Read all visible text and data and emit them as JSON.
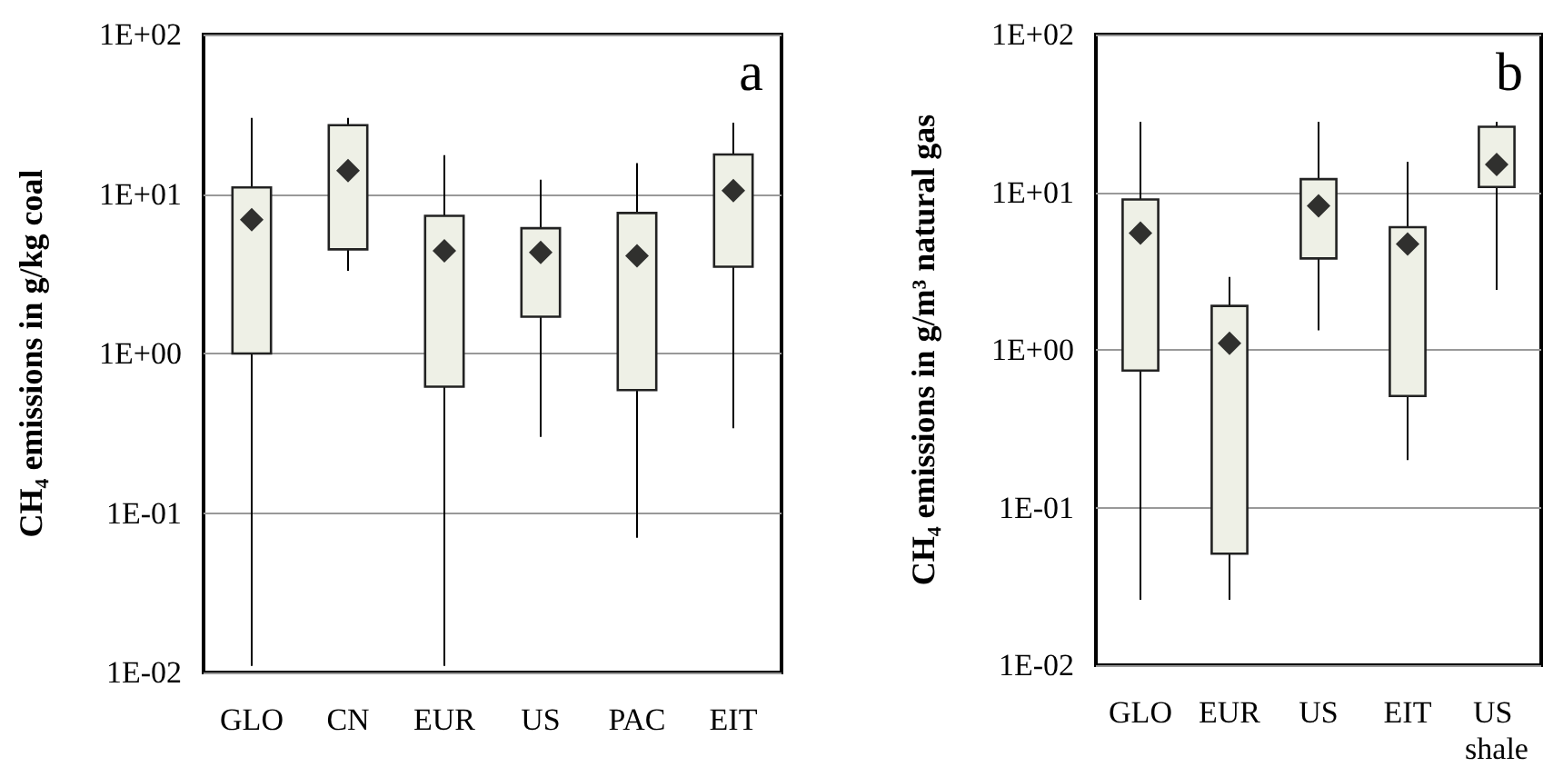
{
  "chart_data": [
    {
      "type": "box",
      "ylabel": "CH₄ emissions in g/kg coal",
      "annotations": [
        "a"
      ],
      "categories": [
        "GLO",
        "CN",
        "EUR",
        "US",
        "PAC",
        "EIT"
      ],
      "color": "#eef0e6",
      "boxes": [
        {
          "low": 0.011,
          "q1": 1.0,
          "q3": 11,
          "high": 30,
          "mean": 6.9
        },
        {
          "low": 3.3,
          "q1": 4.5,
          "q3": 27,
          "high": 30,
          "mean": 14
        },
        {
          "low": 0.011,
          "q1": 0.62,
          "q3": 7.3,
          "high": 17.5,
          "mean": 4.4
        },
        {
          "low": 0.3,
          "q1": 1.7,
          "q3": 6.1,
          "high": 12.3,
          "mean": 4.3
        },
        {
          "low": 0.07,
          "q1": 0.59,
          "q3": 7.6,
          "high": 15.6,
          "mean": 4.1
        },
        {
          "low": 0.34,
          "q1": 3.5,
          "q3": 17.7,
          "high": 28,
          "mean": 10.5
        }
      ],
      "log": "y",
      "ylim": [
        0.01,
        100
      ],
      "yticks": [
        {
          "value": 0.01,
          "label": "1E-02"
        },
        {
          "value": 0.1,
          "label": "1E-01"
        },
        {
          "value": 1,
          "label": "1E+00"
        },
        {
          "value": 10,
          "label": "1E+01"
        },
        {
          "value": 100,
          "label": "1E+02"
        }
      ],
      "grid": "y",
      "marker": "diamond"
    },
    {
      "type": "box",
      "ylabel": "CH₄ emissions in g/m³ natural gas",
      "annotations": [
        "b"
      ],
      "categories": [
        "GLO",
        "EUR",
        "US",
        "EIT",
        "US shale"
      ],
      "color": "#eef0e6",
      "boxes": [
        {
          "low": 0.026,
          "q1": 0.74,
          "q3": 9,
          "high": 28,
          "mean": 5.5
        },
        {
          "low": 0.026,
          "q1": 0.051,
          "q3": 1.9,
          "high": 2.9,
          "mean": 1.1
        },
        {
          "low": 1.33,
          "q1": 3.8,
          "q3": 12.1,
          "high": 28,
          "mean": 8.2
        },
        {
          "low": 0.2,
          "q1": 0.51,
          "q3": 6,
          "high": 15.6,
          "mean": 4.7
        },
        {
          "low": 2.4,
          "q1": 10.8,
          "q3": 26,
          "high": 28,
          "mean": 15
        }
      ],
      "log": "y",
      "ylim": [
        0.01,
        100
      ],
      "yticks": [
        {
          "value": 0.01,
          "label": "1E-02"
        },
        {
          "value": 0.1,
          "label": "1E-01"
        },
        {
          "value": 1,
          "label": "1E+00"
        },
        {
          "value": 10,
          "label": "1E+01"
        },
        {
          "value": 100,
          "label": "1E+02"
        }
      ],
      "grid": "y",
      "marker": "diamond"
    }
  ]
}
